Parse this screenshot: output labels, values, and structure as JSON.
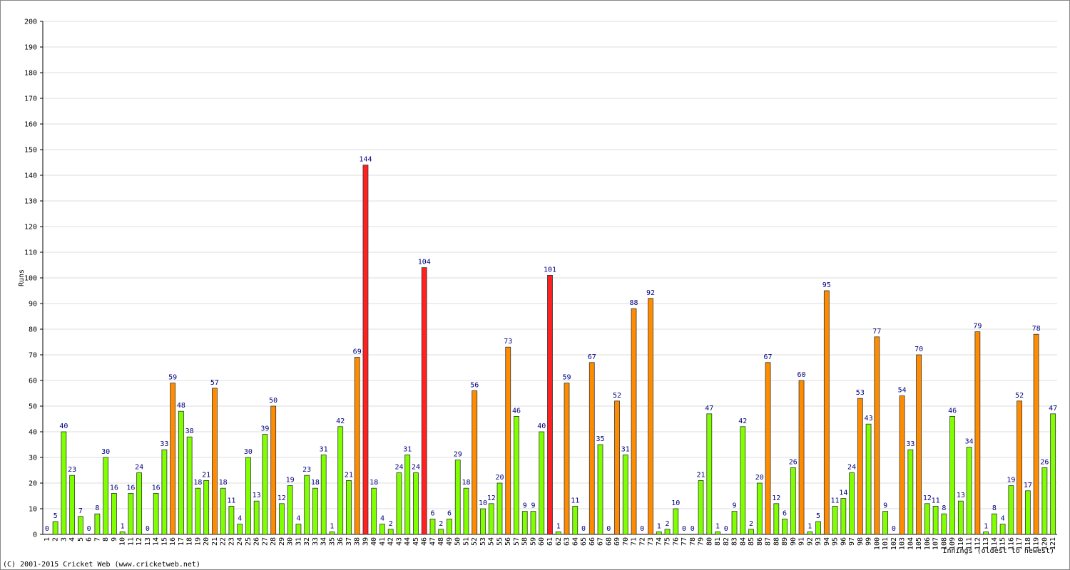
{
  "chart_data": {
    "type": "bar",
    "y_label": "Runs",
    "x_label": "Innings (oldest to newest)",
    "footer": "(C) 2001-2015 Cricket Web (www.cricketweb.net)",
    "categories": [
      "1",
      "2",
      "3",
      "4",
      "5",
      "6",
      "7",
      "8",
      "9",
      "10",
      "11",
      "12",
      "13",
      "14",
      "15",
      "16",
      "17",
      "18",
      "19",
      "20",
      "21",
      "22",
      "23",
      "24",
      "25",
      "26",
      "27",
      "28",
      "29",
      "30",
      "31",
      "32",
      "33",
      "34",
      "35",
      "36",
      "37",
      "38",
      "39",
      "40",
      "41",
      "42",
      "43",
      "44",
      "45",
      "46",
      "47",
      "48",
      "49",
      "50",
      "51",
      "52",
      "53",
      "54",
      "55",
      "56",
      "57",
      "58",
      "59",
      "60",
      "61",
      "62",
      "63",
      "64",
      "65",
      "66",
      "67",
      "68",
      "69",
      "70",
      "71",
      "72",
      "73",
      "74",
      "75",
      "76",
      "77",
      "78",
      "79",
      "80",
      "81",
      "82",
      "83",
      "84",
      "85",
      "86",
      "87",
      "88",
      "89",
      "90",
      "91",
      "92",
      "93",
      "94",
      "95",
      "96",
      "97",
      "98",
      "99",
      "100",
      "101",
      "102",
      "103",
      "104",
      "105",
      "106",
      "107",
      "108",
      "109",
      "110",
      "111",
      "112",
      "113",
      "114",
      "115",
      "116",
      "117",
      "118",
      "119",
      "120",
      "121"
    ],
    "values": [
      0,
      5,
      40,
      23,
      7,
      0,
      8,
      30,
      16,
      1,
      16,
      24,
      0,
      16,
      33,
      59,
      48,
      38,
      18,
      21,
      57,
      18,
      11,
      4,
      30,
      13,
      39,
      50,
      12,
      19,
      4,
      23,
      18,
      31,
      1,
      42,
      21,
      69,
      144,
      18,
      4,
      2,
      24,
      31,
      24,
      104,
      6,
      2,
      6,
      29,
      18,
      56,
      10,
      12,
      20,
      73,
      46,
      9,
      9,
      40,
      101,
      1,
      59,
      11,
      0,
      67,
      35,
      0,
      52,
      31,
      88,
      0,
      92,
      1,
      2,
      10,
      0,
      0,
      21,
      47,
      1,
      0,
      9,
      42,
      2,
      20,
      67,
      12,
      6,
      26,
      60,
      1,
      5,
      95,
      11,
      14,
      24,
      53,
      43,
      77,
      9,
      0,
      54,
      33,
      70,
      12,
      11,
      8,
      46,
      13,
      34,
      79,
      1,
      8,
      4,
      19,
      52,
      17,
      78,
      26,
      47
    ],
    "colors": [
      "#80ff00",
      "#80ff00",
      "#80ff00",
      "#80ff00",
      "#80ff00",
      "#80ff00",
      "#80ff00",
      "#80ff00",
      "#80ff00",
      "#80ff00",
      "#80ff00",
      "#80ff00",
      "#80ff00",
      "#80ff00",
      "#80ff00",
      "#ff8c00",
      "#80ff00",
      "#80ff00",
      "#80ff00",
      "#80ff00",
      "#ff8c00",
      "#80ff00",
      "#80ff00",
      "#80ff00",
      "#80ff00",
      "#80ff00",
      "#80ff00",
      "#ff8c00",
      "#80ff00",
      "#80ff00",
      "#80ff00",
      "#80ff00",
      "#80ff00",
      "#80ff00",
      "#80ff00",
      "#80ff00",
      "#80ff00",
      "#ff8c00",
      "#ff2020",
      "#80ff00",
      "#80ff00",
      "#80ff00",
      "#80ff00",
      "#80ff00",
      "#80ff00",
      "#ff2020",
      "#80ff00",
      "#80ff00",
      "#80ff00",
      "#80ff00",
      "#80ff00",
      "#ff8c00",
      "#80ff00",
      "#80ff00",
      "#80ff00",
      "#ff8c00",
      "#80ff00",
      "#80ff00",
      "#80ff00",
      "#80ff00",
      "#ff2020",
      "#80ff00",
      "#ff8c00",
      "#80ff00",
      "#80ff00",
      "#ff8c00",
      "#80ff00",
      "#80ff00",
      "#ff8c00",
      "#80ff00",
      "#ff8c00",
      "#80ff00",
      "#ff8c00",
      "#80ff00",
      "#80ff00",
      "#80ff00",
      "#80ff00",
      "#80ff00",
      "#80ff00",
      "#80ff00",
      "#80ff00",
      "#80ff00",
      "#80ff00",
      "#80ff00",
      "#80ff00",
      "#80ff00",
      "#ff8c00",
      "#80ff00",
      "#80ff00",
      "#80ff00",
      "#ff8c00",
      "#80ff00",
      "#80ff00",
      "#ff8c00",
      "#80ff00",
      "#80ff00",
      "#80ff00",
      "#ff8c00",
      "#80ff00",
      "#ff8c00",
      "#80ff00",
      "#80ff00",
      "#ff8c00",
      "#80ff00",
      "#ff8c00",
      "#80ff00",
      "#80ff00",
      "#80ff00",
      "#80ff00",
      "#80ff00",
      "#80ff00",
      "#ff8c00",
      "#80ff00",
      "#80ff00",
      "#80ff00",
      "#80ff00",
      "#ff8c00",
      "#80ff00",
      "#ff8c00",
      "#80ff00",
      "#80ff00"
    ],
    "ylim": [
      0,
      200
    ],
    "yticks": [
      0,
      10,
      20,
      30,
      40,
      50,
      60,
      70,
      80,
      90,
      100,
      110,
      120,
      130,
      140,
      150,
      160,
      170,
      180,
      190,
      200
    ],
    "grid": true
  }
}
